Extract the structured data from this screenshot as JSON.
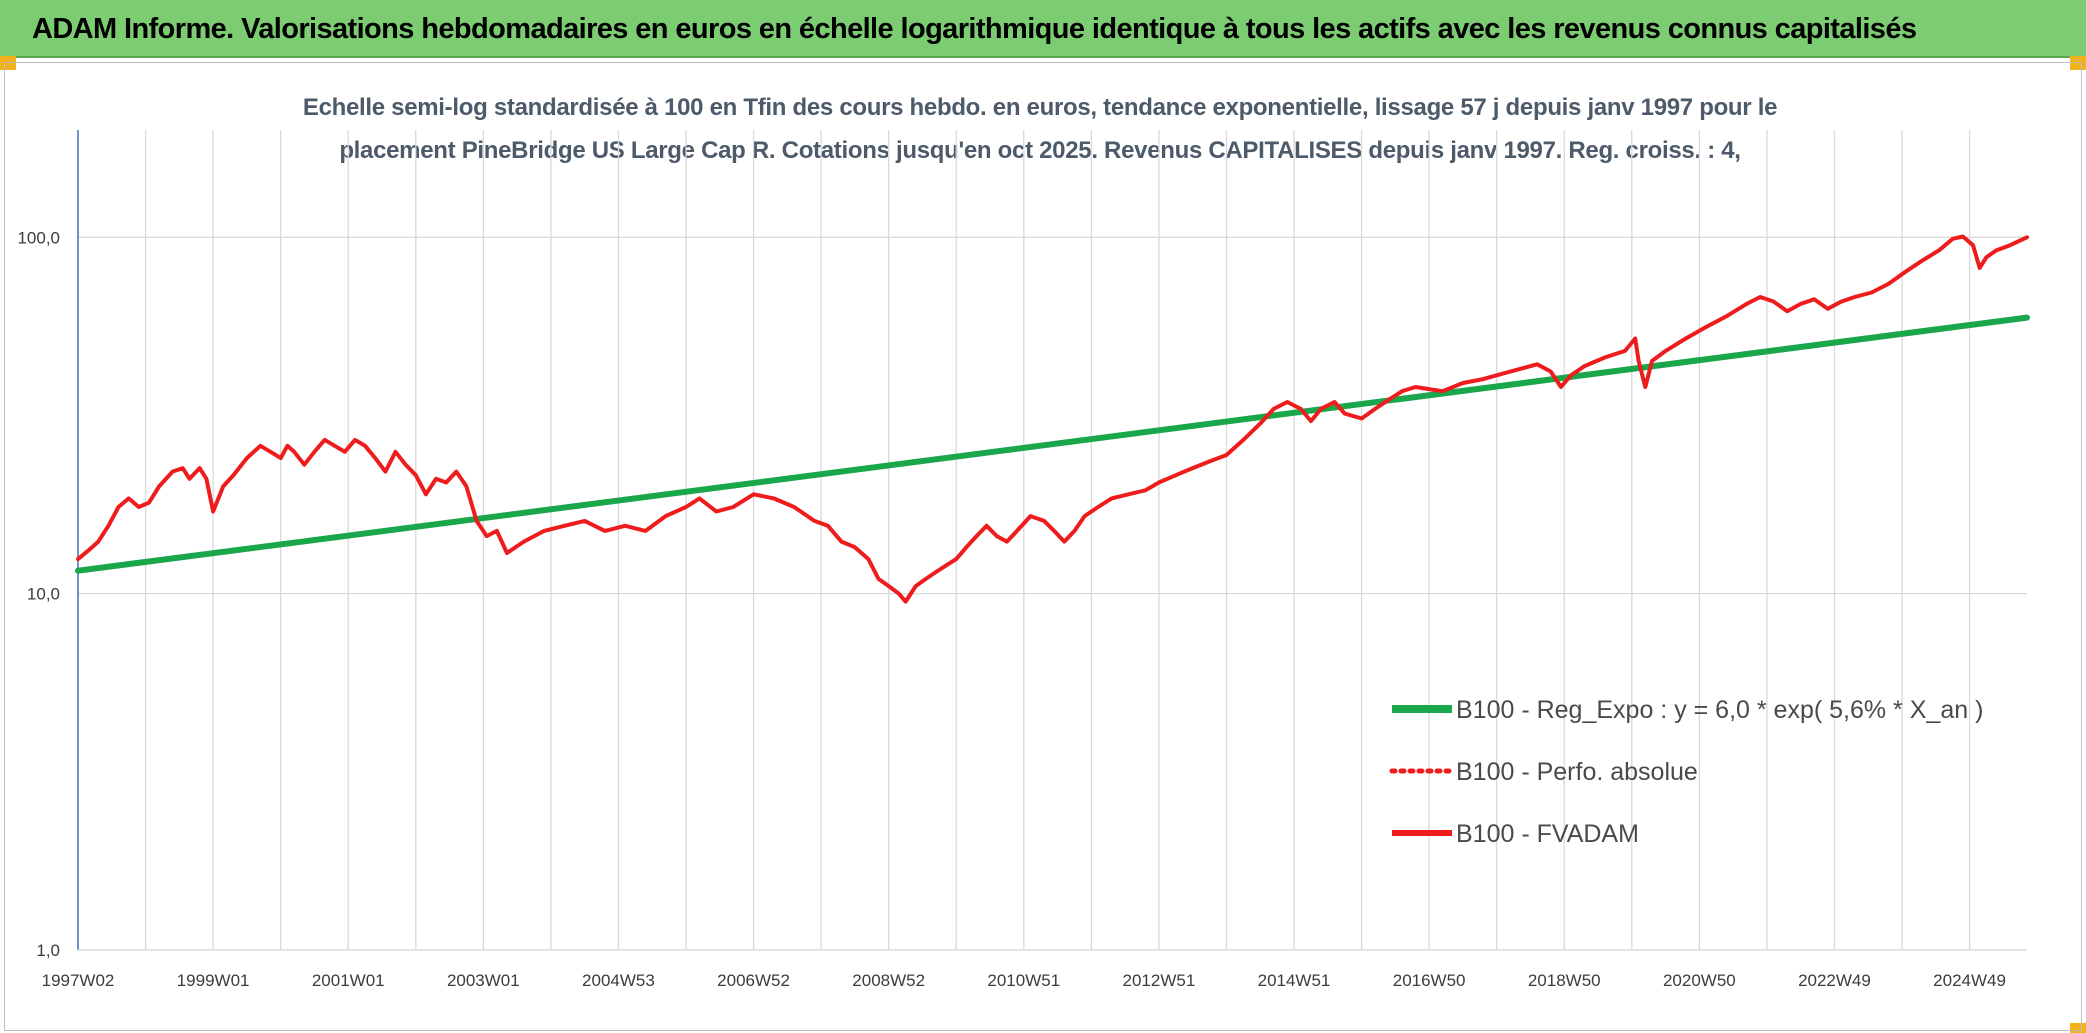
{
  "header": {
    "title": "ADAM Informe. Valorisations hebdomadaires en euros en échelle logarithmique identique à tous les actifs avec les revenus connus capitalisés"
  },
  "colors": {
    "header_bg": "#7ccd72",
    "trend_line": "#1aa64a",
    "fvadam_line": "#ee1c1c",
    "perfo_line": "#ee1c1c",
    "grid": "#d9d9d9",
    "axis": "#4472c4"
  },
  "chart_data": {
    "type": "line",
    "title_lines": [
      "Echelle semi-log standardisée à 100 en Tfin des cours hebdo. en euros, tendance exponentielle, lissage 57 j depuis janv 1997 pour le",
      "placement PineBridge US Large Cap R. Cotations jusqu'en oct 2025. Revenus CAPITALISES depuis janv 1997. Reg. croiss. : 4,"
    ],
    "y_scale": "log",
    "ylim": [
      1,
      200
    ],
    "y_ticks": [
      {
        "value": 1,
        "label": "1,0"
      },
      {
        "value": 10,
        "label": "10,0"
      },
      {
        "value": 100,
        "label": "100,0"
      }
    ],
    "xlim": [
      1997.0,
      2025.85
    ],
    "x_ticks": [
      {
        "value": 1997.0,
        "label": "1997W02"
      },
      {
        "value": 1999.0,
        "label": "1999W01"
      },
      {
        "value": 2001.0,
        "label": "2001W01"
      },
      {
        "value": 2003.0,
        "label": "2003W01"
      },
      {
        "value": 2005.0,
        "label": "2004W53"
      },
      {
        "value": 2007.0,
        "label": "2006W52"
      },
      {
        "value": 2009.0,
        "label": "2008W52"
      },
      {
        "value": 2011.0,
        "label": "2010W51"
      },
      {
        "value": 2013.0,
        "label": "2012W51"
      },
      {
        "value": 2015.0,
        "label": "2014W51"
      },
      {
        "value": 2017.0,
        "label": "2016W50"
      },
      {
        "value": 2019.0,
        "label": "2018W50"
      },
      {
        "value": 2021.0,
        "label": "2020W50"
      },
      {
        "value": 2023.0,
        "label": "2022W49"
      },
      {
        "value": 2025.0,
        "label": "2024W49"
      }
    ],
    "x_minor_ticks": [
      1998,
      2000,
      2002,
      2004,
      2006,
      2008,
      2010,
      2012,
      2014,
      2016,
      2018,
      2020,
      2022,
      2024
    ],
    "legend_position": "bottom-right",
    "series": [
      {
        "name": "B100 - Reg_Expo : y = 6,0 * exp( 5,6% *  X_an )",
        "style": "solid-thick",
        "color": "#1aa64a",
        "x": [
          1997.0,
          2025.85
        ],
        "y": [
          11.6,
          59.5
        ]
      },
      {
        "name": "B100 - Perfo. absolue",
        "style": "dotted",
        "color": "#ee1c1c",
        "x": [],
        "y": []
      },
      {
        "name": "B100 - FVADAM",
        "style": "solid",
        "color": "#ee1c1c",
        "x": [
          1997.0,
          1997.15,
          1997.3,
          1997.45,
          1997.6,
          1997.75,
          1997.9,
          1998.05,
          1998.2,
          1998.4,
          1998.55,
          1998.65,
          1998.8,
          1998.9,
          1999.0,
          1999.15,
          1999.3,
          1999.5,
          1999.7,
          1999.85,
          2000.0,
          2000.1,
          2000.2,
          2000.35,
          2000.5,
          2000.65,
          2000.8,
          2000.95,
          2001.1,
          2001.25,
          2001.4,
          2001.55,
          2001.7,
          2001.85,
          2002.0,
          2002.15,
          2002.3,
          2002.45,
          2002.6,
          2002.75,
          2002.9,
          2003.05,
          2003.2,
          2003.35,
          2003.6,
          2003.9,
          2004.2,
          2004.5,
          2004.8,
          2005.1,
          2005.4,
          2005.7,
          2006.0,
          2006.2,
          2006.45,
          2006.7,
          2007.0,
          2007.3,
          2007.6,
          2007.9,
          2008.1,
          2008.3,
          2008.5,
          2008.7,
          2008.85,
          2009.0,
          2009.15,
          2009.25,
          2009.4,
          2009.55,
          2009.7,
          2009.85,
          2010.0,
          2010.15,
          2010.3,
          2010.45,
          2010.6,
          2010.75,
          2010.9,
          2011.1,
          2011.3,
          2011.45,
          2011.6,
          2011.75,
          2011.9,
          2012.1,
          2012.3,
          2012.55,
          2012.8,
          2013.0,
          2013.25,
          2013.5,
          2013.75,
          2014.0,
          2014.25,
          2014.5,
          2014.7,
          2014.9,
          2015.1,
          2015.25,
          2015.4,
          2015.6,
          2015.75,
          2016.0,
          2016.2,
          2016.4,
          2016.6,
          2016.8,
          2017.0,
          2017.2,
          2017.5,
          2017.8,
          2018.1,
          2018.4,
          2018.6,
          2018.8,
          2018.95,
          2019.1,
          2019.3,
          2019.6,
          2019.9,
          2020.05,
          2020.1,
          2020.2,
          2020.3,
          2020.5,
          2020.8,
          2021.1,
          2021.4,
          2021.7,
          2021.9,
          2022.1,
          2022.3,
          2022.5,
          2022.7,
          2022.9,
          2023.1,
          2023.3,
          2023.55,
          2023.8,
          2024.05,
          2024.3,
          2024.55,
          2024.75,
          2024.9,
          2025.05,
          2025.15,
          2025.25,
          2025.4,
          2025.6,
          2025.85
        ],
        "y": [
          12.5,
          13.2,
          14.0,
          15.5,
          17.5,
          18.5,
          17.5,
          18.0,
          20.0,
          22.0,
          22.5,
          21.0,
          22.5,
          21.0,
          17.0,
          20.0,
          21.5,
          24.0,
          26.0,
          25.0,
          24.0,
          26.0,
          25.0,
          23.0,
          25.0,
          27.0,
          26.0,
          25.0,
          27.0,
          26.0,
          24.0,
          22.0,
          25.0,
          23.0,
          21.5,
          19.0,
          21.0,
          20.5,
          22.0,
          20.0,
          16.0,
          14.5,
          15.0,
          13.0,
          14.0,
          15.0,
          15.5,
          16.0,
          15.0,
          15.5,
          15.0,
          16.5,
          17.5,
          18.5,
          17.0,
          17.5,
          19.0,
          18.5,
          17.5,
          16.0,
          15.5,
          14.0,
          13.5,
          12.5,
          11.0,
          10.5,
          10.0,
          9.5,
          10.5,
          11.0,
          11.5,
          12.0,
          12.5,
          13.5,
          14.5,
          15.5,
          14.5,
          14.0,
          15.0,
          16.5,
          16.0,
          15.0,
          14.0,
          15.0,
          16.5,
          17.5,
          18.5,
          19.0,
          19.5,
          20.5,
          21.5,
          22.5,
          23.5,
          24.5,
          27.0,
          30.0,
          33.0,
          34.5,
          33.0,
          30.5,
          33.0,
          34.5,
          32.0,
          31.0,
          33.0,
          35.0,
          37.0,
          38.0,
          37.5,
          37.0,
          39.0,
          40.0,
          41.5,
          43.0,
          44.0,
          42.0,
          38.0,
          41.0,
          43.5,
          46.0,
          48.0,
          52.0,
          45.0,
          38.0,
          45.0,
          48.0,
          52.0,
          56.0,
          60.0,
          65.0,
          68.0,
          66.0,
          62.0,
          65.0,
          67.0,
          63.0,
          66.0,
          68.0,
          70.0,
          74.0,
          80.0,
          86.0,
          92.0,
          99.0,
          100.5,
          95.0,
          82.0,
          88.0,
          92.0,
          95.0,
          100.0
        ]
      }
    ]
  }
}
